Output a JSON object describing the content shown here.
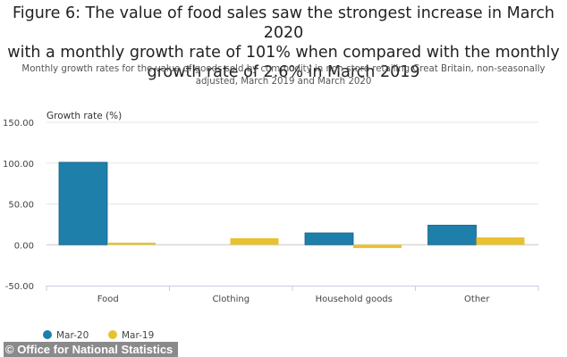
{
  "chart_data": {
    "type": "bar",
    "title": "Figure 6: The value of food sales saw the strongest increase in March 2020 with a monthly growth rate of 101% when compared with the monthly growth rate of 2.6% in March 2019",
    "title_lines": [
      "Figure 6: The value of food sales saw the strongest increase in March 2020",
      "with a monthly growth rate of 101% when compared with the monthly",
      "growth rate of 2.6% in March 2019"
    ],
    "subtitle_lines": [
      "Monthly growth rates for the value of goods sold by commodity in non-store retailing Great Britain, non-seasonally",
      "adjusted, March 2019 and March 2020"
    ],
    "ylabel": "Growth rate (%)",
    "xlabel": "",
    "ylim": [
      -50,
      150
    ],
    "yticks": [
      150,
      100,
      50,
      0,
      -50
    ],
    "ytick_labels": [
      "150.00",
      "100.00",
      "50.00",
      "0.00",
      "-50.00"
    ],
    "grid": true,
    "categories": [
      "Food",
      "Clothing",
      "Household goods",
      "Other"
    ],
    "series": [
      {
        "name": "Mar-20",
        "color": "#1f7fab",
        "values": [
          101,
          0,
          14.5,
          24
        ]
      },
      {
        "name": "Mar-19",
        "color": "#e8c130",
        "values": [
          2.6,
          8,
          -4,
          9
        ]
      }
    ],
    "legend_position": "bottom-left"
  },
  "credit": "© Office for National Statistics"
}
